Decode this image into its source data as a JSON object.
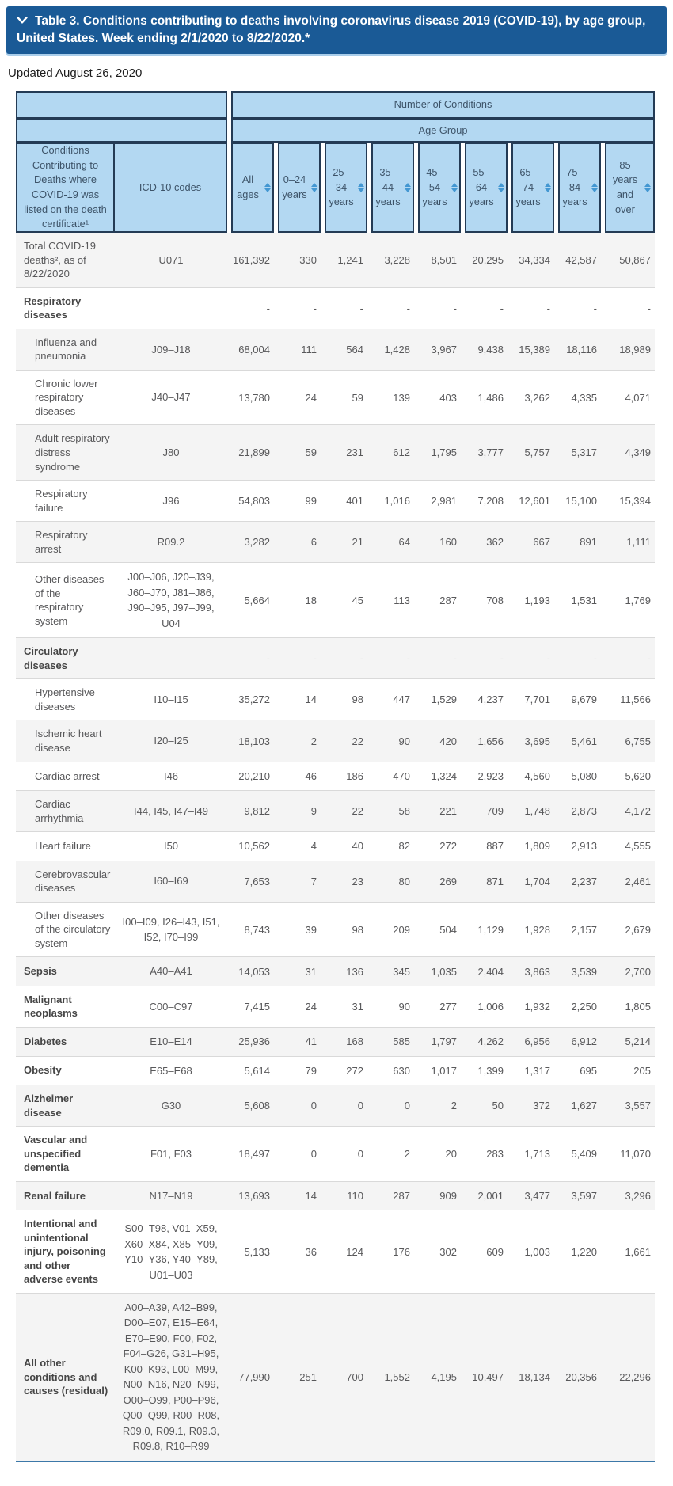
{
  "title_bar": {
    "title": "Table 3. Conditions contributing to deaths involving coronavirus disease 2019 (COVID-19), by age group, United States. Week ending 2/1/2020 to 8/22/2020.*"
  },
  "updated_text": "Updated August 26, 2020",
  "table": {
    "group_header": "Number of Conditions",
    "age_group_header": "Age Group",
    "condition_col_header": "Conditions Contributing to Deaths where COVID-19 was listed on the death certificate¹",
    "icd_col_header": "ICD-10 codes",
    "age_columns": [
      "All ages",
      "0–24 years",
      "25–34 years",
      "35–44 years",
      "45–54 years",
      "55–64 years",
      "65–74 years",
      "75–84 years",
      "85 years and over"
    ],
    "rows": [
      {
        "label": "Total COVID-19 deaths², as of 8/22/2020",
        "icd": "U071",
        "bold": false,
        "indent": false,
        "values": [
          "161,392",
          "330",
          "1,241",
          "3,228",
          "8,501",
          "20,295",
          "34,334",
          "42,587",
          "50,867"
        ]
      },
      {
        "label": "Respiratory diseases",
        "icd": "",
        "bold": true,
        "indent": false,
        "values": [
          "-",
          "-",
          "-",
          "-",
          "-",
          "-",
          "-",
          "-",
          "-"
        ]
      },
      {
        "label": "Influenza and pneumonia",
        "icd": "J09–J18",
        "bold": false,
        "indent": true,
        "values": [
          "68,004",
          "111",
          "564",
          "1,428",
          "3,967",
          "9,438",
          "15,389",
          "18,116",
          "18,989"
        ]
      },
      {
        "label": "Chronic lower respiratory diseases",
        "icd": "J40–J47",
        "bold": false,
        "indent": true,
        "values": [
          "13,780",
          "24",
          "59",
          "139",
          "403",
          "1,486",
          "3,262",
          "4,335",
          "4,071"
        ]
      },
      {
        "label": "Adult respiratory distress syndrome",
        "icd": "J80",
        "bold": false,
        "indent": true,
        "values": [
          "21,899",
          "59",
          "231",
          "612",
          "1,795",
          "3,777",
          "5,757",
          "5,317",
          "4,349"
        ]
      },
      {
        "label": "Respiratory failure",
        "icd": "J96",
        "bold": false,
        "indent": true,
        "values": [
          "54,803",
          "99",
          "401",
          "1,016",
          "2,981",
          "7,208",
          "12,601",
          "15,100",
          "15,394"
        ]
      },
      {
        "label": "Respiratory arrest",
        "icd": "R09.2",
        "bold": false,
        "indent": true,
        "values": [
          "3,282",
          "6",
          "21",
          "64",
          "160",
          "362",
          "667",
          "891",
          "1,111"
        ]
      },
      {
        "label": "Other diseases of the respiratory system",
        "icd": "J00–J06, J20–J39, J60–J70, J81–J86, J90–J95, J97–J99, U04",
        "bold": false,
        "indent": true,
        "values": [
          "5,664",
          "18",
          "45",
          "113",
          "287",
          "708",
          "1,193",
          "1,531",
          "1,769"
        ]
      },
      {
        "label": "Circulatory diseases",
        "icd": "",
        "bold": true,
        "indent": false,
        "values": [
          "-",
          "-",
          "-",
          "-",
          "-",
          "-",
          "-",
          "-",
          "-"
        ]
      },
      {
        "label": "Hypertensive diseases",
        "icd": "I10–I15",
        "bold": false,
        "indent": true,
        "values": [
          "35,272",
          "14",
          "98",
          "447",
          "1,529",
          "4,237",
          "7,701",
          "9,679",
          "11,566"
        ]
      },
      {
        "label": "Ischemic heart disease",
        "icd": "I20–I25",
        "bold": false,
        "indent": true,
        "values": [
          "18,103",
          "2",
          "22",
          "90",
          "420",
          "1,656",
          "3,695",
          "5,461",
          "6,755"
        ]
      },
      {
        "label": "Cardiac arrest",
        "icd": "I46",
        "bold": false,
        "indent": true,
        "values": [
          "20,210",
          "46",
          "186",
          "470",
          "1,324",
          "2,923",
          "4,560",
          "5,080",
          "5,620"
        ]
      },
      {
        "label": "Cardiac arrhythmia",
        "icd": "I44, I45, I47–I49",
        "bold": false,
        "indent": true,
        "values": [
          "9,812",
          "9",
          "22",
          "58",
          "221",
          "709",
          "1,748",
          "2,873",
          "4,172"
        ]
      },
      {
        "label": "Heart failure",
        "icd": "I50",
        "bold": false,
        "indent": true,
        "values": [
          "10,562",
          "4",
          "40",
          "82",
          "272",
          "887",
          "1,809",
          "2,913",
          "4,555"
        ]
      },
      {
        "label": "Cerebrovascular diseases",
        "icd": "I60–I69",
        "bold": false,
        "indent": true,
        "values": [
          "7,653",
          "7",
          "23",
          "80",
          "269",
          "871",
          "1,704",
          "2,237",
          "2,461"
        ]
      },
      {
        "label": "Other diseases of the circulatory system",
        "icd": "I00–I09, I26–I43, I51, I52, I70–I99",
        "bold": false,
        "indent": true,
        "values": [
          "8,743",
          "39",
          "98",
          "209",
          "504",
          "1,129",
          "1,928",
          "2,157",
          "2,679"
        ]
      },
      {
        "label": "Sepsis",
        "icd": "A40–A41",
        "bold": true,
        "indent": false,
        "values": [
          "14,053",
          "31",
          "136",
          "345",
          "1,035",
          "2,404",
          "3,863",
          "3,539",
          "2,700"
        ]
      },
      {
        "label": "Malignant neoplasms",
        "icd": "C00–C97",
        "bold": true,
        "indent": false,
        "values": [
          "7,415",
          "24",
          "31",
          "90",
          "277",
          "1,006",
          "1,932",
          "2,250",
          "1,805"
        ]
      },
      {
        "label": "Diabetes",
        "icd": "E10–E14",
        "bold": true,
        "indent": false,
        "values": [
          "25,936",
          "41",
          "168",
          "585",
          "1,797",
          "4,262",
          "6,956",
          "6,912",
          "5,214"
        ]
      },
      {
        "label": "Obesity",
        "icd": "E65–E68",
        "bold": true,
        "indent": false,
        "values": [
          "5,614",
          "79",
          "272",
          "630",
          "1,017",
          "1,399",
          "1,317",
          "695",
          "205"
        ]
      },
      {
        "label": "Alzheimer disease",
        "icd": "G30",
        "bold": true,
        "indent": false,
        "values": [
          "5,608",
          "0",
          "0",
          "0",
          "2",
          "50",
          "372",
          "1,627",
          "3,557"
        ]
      },
      {
        "label": "Vascular and unspecified dementia",
        "icd": "F01, F03",
        "bold": true,
        "indent": false,
        "values": [
          "18,497",
          "0",
          "0",
          "2",
          "20",
          "283",
          "1,713",
          "5,409",
          "11,070"
        ]
      },
      {
        "label": "Renal failure",
        "icd": "N17–N19",
        "bold": true,
        "indent": false,
        "values": [
          "13,693",
          "14",
          "110",
          "287",
          "909",
          "2,001",
          "3,477",
          "3,597",
          "3,296"
        ]
      },
      {
        "label": "Intentional and unintentional injury, poisoning and other adverse events",
        "icd": "S00–T98, V01–X59, X60–X84, X85–Y09, Y10–Y36, Y40–Y89, U01–U03",
        "bold": true,
        "indent": false,
        "values": [
          "5,133",
          "36",
          "124",
          "176",
          "302",
          "609",
          "1,003",
          "1,220",
          "1,661"
        ]
      },
      {
        "label": "All other conditions and causes (residual)",
        "icd": "A00–A39, A42–B99, D00–E07, E15–E64, E70–E90, F00, F02, F04–G26, G31–H95, K00–K93, L00–M99, N00–N16, N20–N99, O00–O99, P00–P96, Q00–Q99, R00–R08, R09.0, R09.1, R09.3, R09.8, R10–R99",
        "bold": true,
        "indent": false,
        "values": [
          "77,990",
          "251",
          "700",
          "1,552",
          "4,195",
          "10,497",
          "18,134",
          "20,356",
          "22,296"
        ]
      }
    ]
  },
  "colors": {
    "title_bg": "#1a5a96",
    "title_underline": "#a9cdea",
    "hdr_bg": "#b3d8f2",
    "hdr_line": "#243b55",
    "hdr_text": "#3d5368",
    "sort_arrow": "#4397d2",
    "stripe": "#f4f4f4",
    "row_line": "#d9d9d9",
    "bottom_line": "#3c78a8",
    "body_text": "#58585a",
    "bold_text": "#454545"
  }
}
